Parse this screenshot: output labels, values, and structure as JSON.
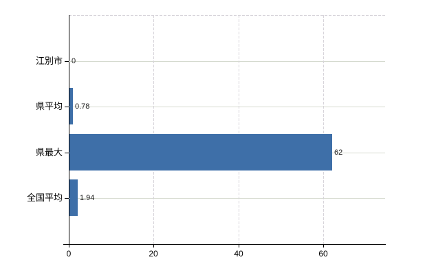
{
  "chart": {
    "background_color": "#ffffff",
    "axis_color": "#000000",
    "bar_color": "#3e6fa8",
    "h_grid_color": "#d5dacf",
    "v_grid_color": "#d7d4da",
    "text_color": "#000000",
    "value_text_color": "#222222"
  },
  "chart_data": {
    "type": "bar",
    "orientation": "horizontal",
    "title": "",
    "xlabel": "",
    "ylabel": "",
    "categories": [
      "江別市",
      "県平均",
      "県最大",
      "全国平均"
    ],
    "values": [
      0,
      0.78,
      62,
      1.94
    ],
    "value_labels": [
      "0",
      "0.78",
      "62",
      "1.94"
    ],
    "x_ticks": [
      0,
      20,
      40,
      60
    ],
    "xlim": [
      0,
      74.6
    ],
    "grid": true,
    "h_grid_style": "solid",
    "v_grid_style": "dashed",
    "legend_position": "none"
  }
}
